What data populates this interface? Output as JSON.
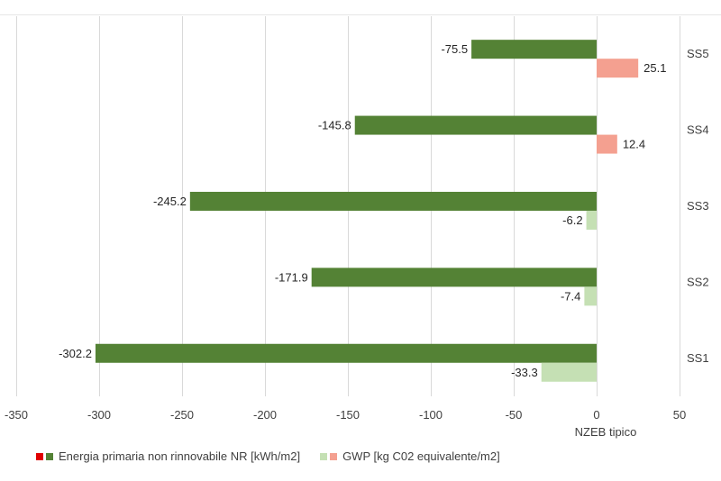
{
  "chart_data": {
    "type": "bar",
    "orientation": "horizontal",
    "categories": [
      "SS1",
      "SS2",
      "SS3",
      "SS4",
      "SS5"
    ],
    "series": [
      {
        "name": "Energia primaria non rinnovabile NR [kWh/m2]",
        "values": [
          -302.2,
          -171.9,
          -245.2,
          -145.8,
          -75.5
        ],
        "color": "#548235",
        "negative_color": "#548235",
        "legend_marker_color": "#e00000"
      },
      {
        "name": "GWP [kg C02 equivalente/m2]",
        "values": [
          -33.3,
          -7.4,
          -6.2,
          12.4,
          25.1
        ],
        "color": "#f4a090",
        "negative_color": "#c5e0b4",
        "legend_marker_color": "#c5e0b4"
      }
    ],
    "data_labels": {
      "SS1": [
        "-302.2",
        "-33.3"
      ],
      "SS2": [
        "-171.9",
        "-7.4"
      ],
      "SS3": [
        "-245.2",
        "-6.2"
      ],
      "SS4": [
        "-145.8",
        "12.4"
      ],
      "SS5": [
        "-75.5",
        "25.1"
      ]
    },
    "xlim": [
      -350,
      50
    ],
    "xticks": [
      -350,
      -300,
      -250,
      -200,
      -150,
      -100,
      -50,
      0,
      50
    ],
    "xtick_labels": [
      "-350",
      "-300",
      "-250",
      "-200",
      "-150",
      "-100",
      "-50",
      "0",
      "50"
    ],
    "zero_annotation": "NZEB tipico",
    "grid": "vertical",
    "legend_position": "bottom-left"
  }
}
